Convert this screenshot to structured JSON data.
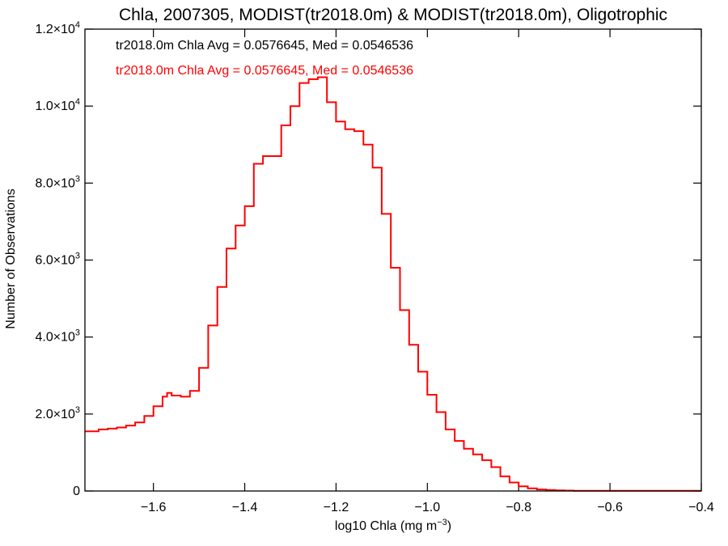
{
  "chart_data": {
    "type": "line",
    "style": "step-histogram",
    "title": "Chla, 2007305, MODIST(tr2018.0m) & MODIST(tr2018.0m), Oligotrophic",
    "xlabel_main": "log10 Chla (mg m",
    "xlabel_exp": "−3",
    "xlabel_close": ")",
    "ylabel": "Number of Observations",
    "xlim": [
      -1.75,
      -0.4
    ],
    "ylim": [
      0,
      12000
    ],
    "x_ticks": [
      {
        "value": -1.6,
        "label": "−1.6"
      },
      {
        "value": -1.4,
        "label": "−1.4"
      },
      {
        "value": -1.2,
        "label": "−1.2"
      },
      {
        "value": -1.0,
        "label": "−1.0"
      },
      {
        "value": -0.8,
        "label": "−0.8"
      },
      {
        "value": -0.6,
        "label": "−0.6"
      },
      {
        "value": -0.4,
        "label": "−0.4"
      }
    ],
    "y_ticks": [
      {
        "value": 0,
        "mant": "0",
        "exp": ""
      },
      {
        "value": 2000,
        "mant": "2.0×10",
        "exp": "3"
      },
      {
        "value": 4000,
        "mant": "4.0×10",
        "exp": "3"
      },
      {
        "value": 6000,
        "mant": "6.0×10",
        "exp": "3"
      },
      {
        "value": 8000,
        "mant": "8.0×10",
        "exp": "3"
      },
      {
        "value": 10000,
        "mant": "1.0×10",
        "exp": "4"
      },
      {
        "value": 12000,
        "mant": "1.2×10",
        "exp": "4"
      }
    ],
    "grid": false,
    "annotations": [
      {
        "text": "tr2018.0m Chla Avg = 0.0576645, Med = 0.0546536",
        "color": "#000000"
      },
      {
        "text": "tr2018.0m Chla Avg = 0.0576645, Med = 0.0546536",
        "color": "#ff0000"
      }
    ],
    "series": [
      {
        "color": "#ff0000",
        "x": [
          -1.75,
          -1.72,
          -1.7,
          -1.68,
          -1.66,
          -1.64,
          -1.62,
          -1.6,
          -1.58,
          -1.57,
          -1.56,
          -1.54,
          -1.52,
          -1.5,
          -1.48,
          -1.46,
          -1.44,
          -1.42,
          -1.4,
          -1.38,
          -1.36,
          -1.34,
          -1.32,
          -1.3,
          -1.28,
          -1.26,
          -1.24,
          -1.22,
          -1.2,
          -1.18,
          -1.16,
          -1.14,
          -1.12,
          -1.1,
          -1.08,
          -1.06,
          -1.04,
          -1.02,
          -1.0,
          -0.98,
          -0.96,
          -0.94,
          -0.92,
          -0.9,
          -0.88,
          -0.86,
          -0.84,
          -0.82,
          -0.8,
          -0.78,
          -0.76,
          -0.74,
          -0.72,
          -0.7,
          -0.68,
          -0.66,
          -0.6,
          -0.5,
          -0.4
        ],
        "y": [
          1550,
          1600,
          1620,
          1650,
          1700,
          1780,
          1950,
          2200,
          2450,
          2550,
          2480,
          2450,
          2600,
          3200,
          4300,
          5300,
          6300,
          6900,
          7400,
          8500,
          8700,
          8700,
          9500,
          10000,
          10600,
          10700,
          10750,
          10100,
          9600,
          9400,
          9350,
          9000,
          8400,
          7200,
          5800,
          4700,
          3800,
          3100,
          2500,
          2050,
          1600,
          1300,
          1100,
          950,
          800,
          620,
          380,
          220,
          120,
          70,
          40,
          25,
          15,
          10,
          5,
          5,
          5,
          5,
          5
        ]
      }
    ]
  }
}
